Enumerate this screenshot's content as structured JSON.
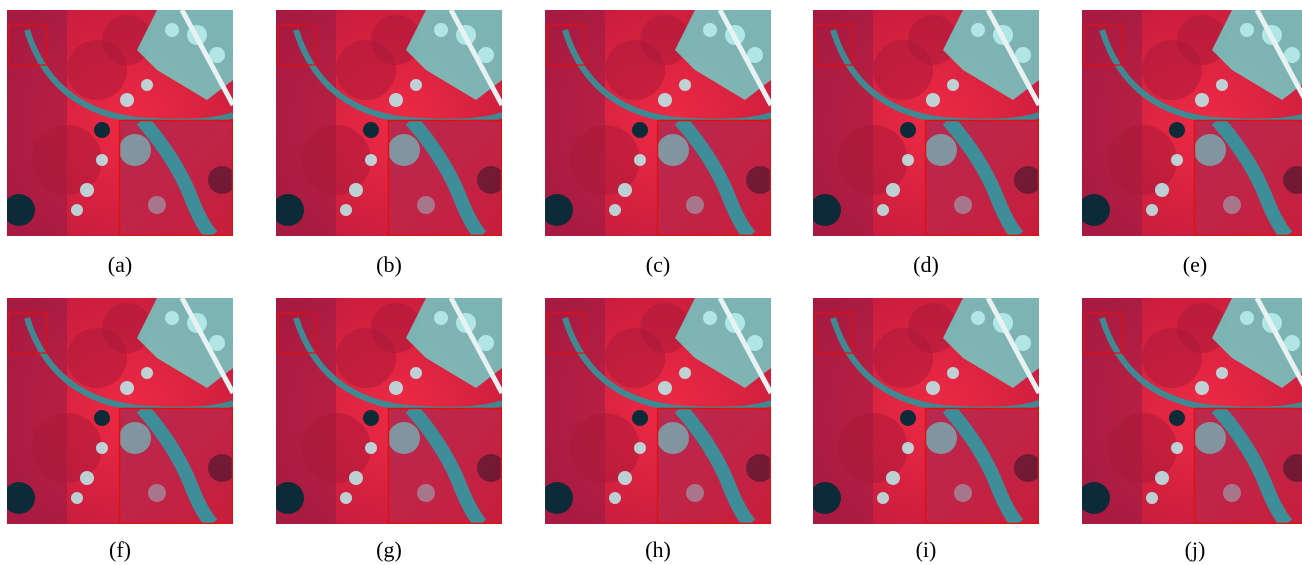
{
  "panels": [
    {
      "label": "(a)"
    },
    {
      "label": "(b)"
    },
    {
      "label": "(c)"
    },
    {
      "label": "(d)"
    },
    {
      "label": "(e)"
    },
    {
      "label": "(f)"
    },
    {
      "label": "(g)"
    },
    {
      "label": "(h)"
    },
    {
      "label": "(i)"
    },
    {
      "label": "(j)"
    }
  ]
}
